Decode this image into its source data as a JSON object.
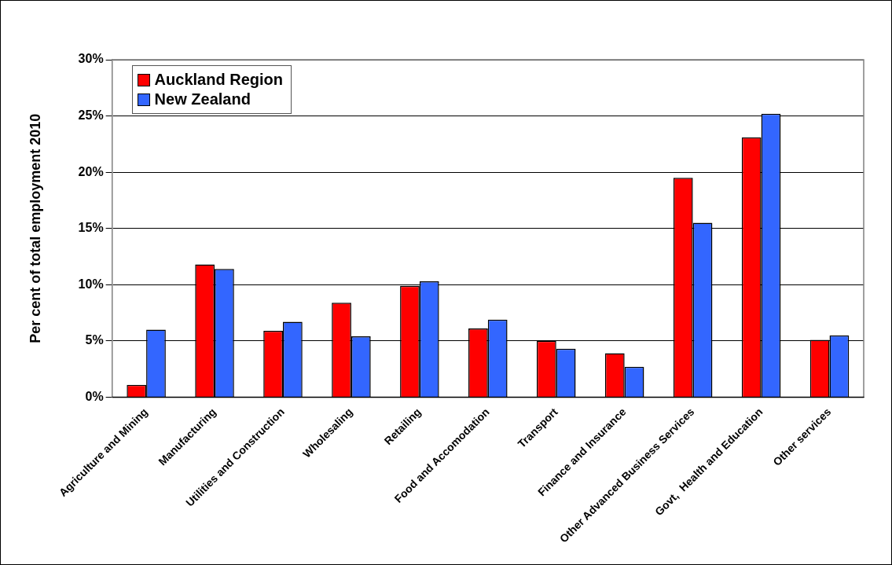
{
  "chart_data": {
    "type": "bar",
    "ylabel": "Per cent of total employment 2010",
    "categories": [
      "Agriculture and Mining",
      "Manufacturing",
      "Utilities and Construction",
      "Wholesaling",
      "Retailing",
      "Food and Accomodation",
      "Transport",
      "Finance and Insurance",
      "Other Advanced Business Services",
      "Govt,  Health and Education",
      "Other services"
    ],
    "series": [
      {
        "name": "Auckland Region",
        "color": "#ff0000",
        "values": [
          1.1,
          11.8,
          5.9,
          8.4,
          9.9,
          6.1,
          5.0,
          3.9,
          19.5,
          23.1,
          5.1
        ]
      },
      {
        "name": "New Zealand",
        "color": "#3366ff",
        "values": [
          6.0,
          11.4,
          6.7,
          5.4,
          10.3,
          6.9,
          4.3,
          2.7,
          15.5,
          25.2,
          5.5
        ]
      }
    ],
    "ylim": [
      0,
      30
    ],
    "yticks": [
      {
        "value": 0,
        "label": "0%"
      },
      {
        "value": 5,
        "label": "5%"
      },
      {
        "value": 10,
        "label": "10%"
      },
      {
        "value": 15,
        "label": "15%"
      },
      {
        "value": 20,
        "label": "20%"
      },
      {
        "value": 25,
        "label": "25%"
      },
      {
        "value": 30,
        "label": "30%"
      }
    ],
    "grid": "y",
    "legend": "top left"
  }
}
